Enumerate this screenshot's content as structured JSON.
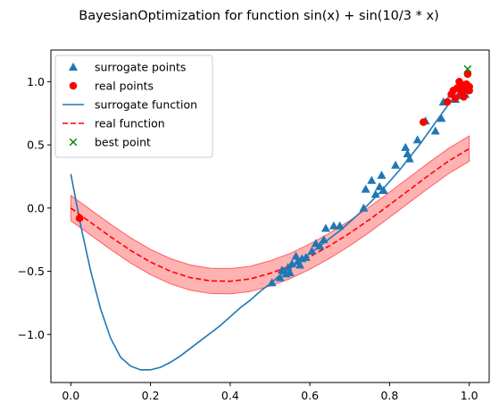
{
  "chart_data": {
    "type": "scatter",
    "title": "BayesianOptimization for function sin(x) + sin(10/3 * x)",
    "xlabel": "",
    "ylabel": "",
    "xlim": [
      -0.05,
      1.05
    ],
    "ylim": [
      -1.38,
      1.25
    ],
    "xticks": [
      0.0,
      0.2,
      0.4,
      0.6,
      0.8,
      1.0
    ],
    "yticks": [
      -1.0,
      -0.5,
      0.0,
      0.5,
      1.0
    ],
    "xtick_labels": [
      "0.0",
      "0.2",
      "0.4",
      "0.6",
      "0.8",
      "1.0"
    ],
    "ytick_labels": [
      "−1.0",
      "−0.5",
      "0.0",
      "0.5",
      "1.0"
    ],
    "legend_position": "top-left",
    "colors": {
      "surrogate_points": "#1f77b4",
      "real_points": "#ff0000",
      "surrogate_function": "#1f77b4",
      "real_function": "#ff0000",
      "band": "#ff0000",
      "best_point": "#008000"
    },
    "legend": [
      {
        "key": "surrogate_points",
        "label": "surrogate points",
        "marker": "triangle"
      },
      {
        "key": "real_points",
        "label": "real points",
        "marker": "circle"
      },
      {
        "key": "surrogate_function",
        "label": "surrogate function",
        "marker": "solid-line"
      },
      {
        "key": "real_function",
        "label": "real function",
        "marker": "dashed-line"
      },
      {
        "key": "best_point",
        "label": "best point",
        "marker": "x"
      }
    ],
    "series": [
      {
        "name": "surrogate points",
        "kind": "scatter-triangle",
        "points": [
          [
            0.505,
            -0.59
          ],
          [
            0.525,
            -0.55
          ],
          [
            0.53,
            -0.49
          ],
          [
            0.54,
            -0.52
          ],
          [
            0.545,
            -0.47
          ],
          [
            0.55,
            -0.51
          ],
          [
            0.555,
            -0.44
          ],
          [
            0.565,
            -0.38
          ],
          [
            0.57,
            -0.42
          ],
          [
            0.575,
            -0.45
          ],
          [
            0.58,
            -0.4
          ],
          [
            0.59,
            -0.39
          ],
          [
            0.605,
            -0.34
          ],
          [
            0.615,
            -0.28
          ],
          [
            0.625,
            -0.3
          ],
          [
            0.635,
            -0.25
          ],
          [
            0.64,
            -0.16
          ],
          [
            0.66,
            -0.14
          ],
          [
            0.675,
            -0.14
          ],
          [
            0.735,
            0.0
          ],
          [
            0.74,
            0.15
          ],
          [
            0.755,
            0.22
          ],
          [
            0.765,
            0.11
          ],
          [
            0.775,
            0.17
          ],
          [
            0.78,
            0.26
          ],
          [
            0.785,
            0.14
          ],
          [
            0.815,
            0.34
          ],
          [
            0.84,
            0.48
          ],
          [
            0.845,
            0.43
          ],
          [
            0.85,
            0.39
          ],
          [
            0.87,
            0.54
          ],
          [
            0.89,
            0.69
          ],
          [
            0.915,
            0.61
          ],
          [
            0.93,
            0.71
          ],
          [
            0.935,
            0.84
          ],
          [
            0.955,
            0.9
          ],
          [
            0.965,
            0.86
          ],
          [
            0.975,
            0.89
          ],
          [
            0.985,
            0.95
          ],
          [
            0.99,
            0.9
          ]
        ]
      },
      {
        "name": "real points",
        "kind": "scatter-circle",
        "points": [
          [
            0.022,
            -0.08
          ],
          [
            0.885,
            0.68
          ],
          [
            0.945,
            0.84
          ],
          [
            0.955,
            0.9
          ],
          [
            0.96,
            0.93
          ],
          [
            0.965,
            0.87
          ],
          [
            0.97,
            0.95
          ],
          [
            0.975,
            1.0
          ],
          [
            0.98,
            0.91
          ],
          [
            0.983,
            0.97
          ],
          [
            0.986,
            0.88
          ],
          [
            0.99,
            0.94
          ],
          [
            0.993,
            0.98
          ],
          [
            0.996,
            1.06
          ],
          [
            1.0,
            0.96
          ],
          [
            1.0,
            0.93
          ]
        ]
      },
      {
        "name": "surrogate function",
        "kind": "line",
        "x": [
          0.0,
          0.025,
          0.05,
          0.075,
          0.1,
          0.125,
          0.15,
          0.175,
          0.2,
          0.225,
          0.25,
          0.275,
          0.3,
          0.325,
          0.35,
          0.375,
          0.4,
          0.425,
          0.45,
          0.475,
          0.5,
          0.525,
          0.55,
          0.575,
          0.6,
          0.625,
          0.65,
          0.675,
          0.7,
          0.725,
          0.75,
          0.775,
          0.8,
          0.825,
          0.85,
          0.875,
          0.9,
          0.925,
          0.95,
          0.975,
          1.0
        ],
        "y": [
          0.27,
          -0.14,
          -0.5,
          -0.8,
          -1.03,
          -1.18,
          -1.25,
          -1.28,
          -1.28,
          -1.26,
          -1.22,
          -1.17,
          -1.11,
          -1.05,
          -0.99,
          -0.93,
          -0.86,
          -0.79,
          -0.73,
          -0.66,
          -0.6,
          -0.53,
          -0.48,
          -0.42,
          -0.36,
          -0.3,
          -0.24,
          -0.18,
          -0.11,
          -0.04,
          0.04,
          0.12,
          0.21,
          0.3,
          0.4,
          0.5,
          0.61,
          0.72,
          0.83,
          0.92,
          0.97
        ]
      },
      {
        "name": "real function",
        "kind": "dashed-line",
        "x": [
          0.0,
          0.05,
          0.1,
          0.15,
          0.2,
          0.25,
          0.3,
          0.35,
          0.4,
          0.45,
          0.5,
          0.55,
          0.6,
          0.65,
          0.7,
          0.75,
          0.8,
          0.85,
          0.9,
          0.95,
          1.0
        ],
        "y": [
          0.0,
          -0.114,
          -0.228,
          -0.335,
          -0.427,
          -0.5,
          -0.55,
          -0.576,
          -0.579,
          -0.561,
          -0.517,
          -0.459,
          -0.384,
          -0.297,
          -0.199,
          -0.09,
          0.026,
          0.145,
          0.263,
          0.376,
          0.47
        ]
      },
      {
        "name": "best point",
        "kind": "scatter-x",
        "points": [
          [
            0.996,
            1.1
          ]
        ]
      }
    ],
    "band": {
      "follows": "real function",
      "halfwidth": 0.1
    }
  }
}
